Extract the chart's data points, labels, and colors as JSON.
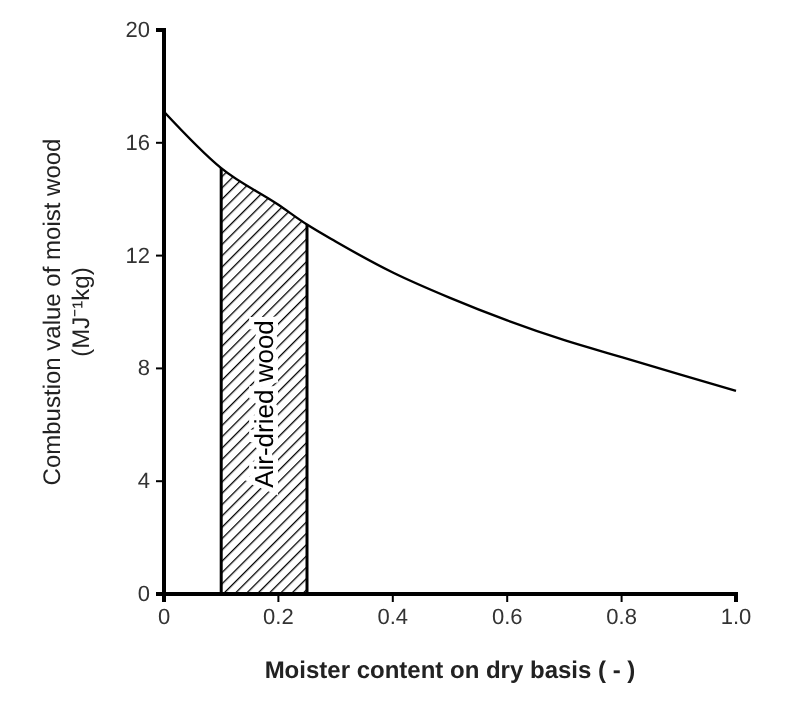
{
  "chart_data": {
    "type": "line",
    "xlabel": "Moister content on dry basis ( - )",
    "ylabel": "Combustion value of moist wood\n(MJ⁻¹kg)",
    "x": [
      0,
      0.1,
      0.2,
      0.25,
      0.3,
      0.4,
      0.5,
      0.6,
      0.7,
      0.8,
      0.9,
      1.0
    ],
    "series": [
      {
        "color": "#000000",
        "values": [
          17.1,
          15.1,
          13.8,
          13.1,
          12.5,
          11.4,
          10.5,
          9.7,
          9.0,
          8.4,
          7.8,
          7.2
        ]
      }
    ],
    "xlim": [
      0,
      1.0
    ],
    "xticks": [
      0,
      {
        "value": 0.2,
        "label": "0.2"
      },
      {
        "value": 0.4,
        "label": "0.4"
      },
      {
        "value": 0.6,
        "label": "0.6"
      },
      {
        "value": 0.8,
        "label": "0.8"
      },
      {
        "value": 1.0,
        "label": "1.0"
      }
    ],
    "ylim": [
      0,
      20
    ],
    "yticks": [
      0,
      4,
      8,
      12,
      16,
      20
    ],
    "bands": [
      {
        "axis": "x",
        "from": 0.1,
        "to": 0.25,
        "label": "Air-dried wood",
        "color": "#000000"
      }
    ],
    "grid": false,
    "marker": "none",
    "line_style": "solid"
  }
}
